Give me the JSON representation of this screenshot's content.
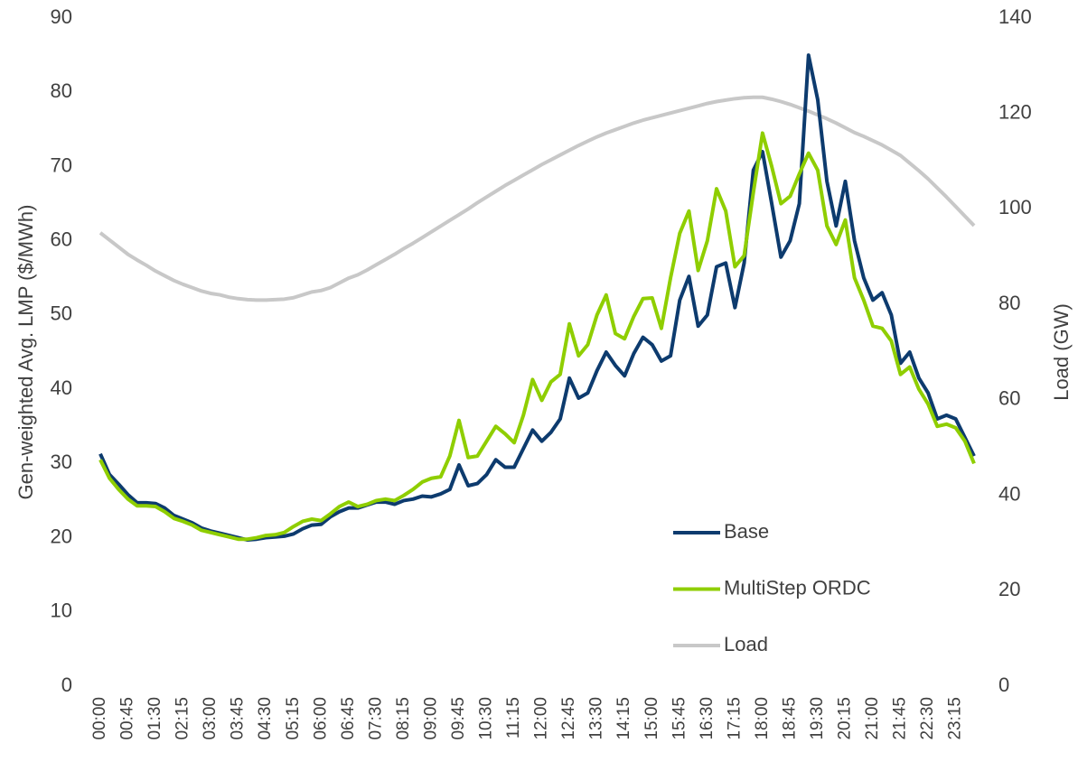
{
  "chart_data": {
    "type": "line",
    "categories": [
      "00:00",
      null,
      null,
      "00:45",
      null,
      null,
      "01:30",
      null,
      null,
      "02:15",
      null,
      null,
      "03:00",
      null,
      null,
      "03:45",
      null,
      null,
      "04:30",
      null,
      null,
      "05:15",
      null,
      null,
      "06:00",
      null,
      null,
      "06:45",
      null,
      null,
      "07:30",
      null,
      null,
      "08:15",
      null,
      null,
      "09:00",
      null,
      null,
      "09:45",
      null,
      null,
      "10:30",
      null,
      null,
      "11:15",
      null,
      null,
      "12:00",
      null,
      null,
      "12:45",
      null,
      null,
      "13:30",
      null,
      null,
      "14:15",
      null,
      null,
      "15:00",
      null,
      null,
      "15:45",
      null,
      null,
      "16:30",
      null,
      null,
      "17:15",
      null,
      null,
      "18:00",
      null,
      null,
      "18:45",
      null,
      null,
      "19:30",
      null,
      null,
      "20:15",
      null,
      null,
      "21:00",
      null,
      null,
      "21:45",
      null,
      null,
      "22:30",
      null,
      null,
      "23:15",
      null,
      null
    ],
    "ylabel": "Gen-weighted Avg. LMP ($/MWh)",
    "y2label": "Load (GW)",
    "ylim": [
      0,
      90
    ],
    "yticks": [
      0,
      10,
      20,
      30,
      40,
      50,
      60,
      70,
      80,
      90
    ],
    "y2lim": [
      0,
      140
    ],
    "y2ticks": [
      0,
      20,
      40,
      60,
      80,
      100,
      120,
      140
    ],
    "legend_loc": "lower right",
    "series": [
      {
        "name": "Base",
        "color": "#0d3b6e",
        "values": [
          31.3,
          28.5,
          27.2,
          25.8,
          24.7,
          24.7,
          24.6,
          24.0,
          23.0,
          22.5,
          22.0,
          21.3,
          20.9,
          20.6,
          20.3,
          20.0,
          19.7,
          19.8,
          20.0,
          20.1,
          20.2,
          20.5,
          21.2,
          21.7,
          21.8,
          22.8,
          23.5,
          24.0,
          24.0,
          24.4,
          24.8,
          24.8,
          24.5,
          25.0,
          25.2,
          25.6,
          25.5,
          25.9,
          26.5,
          29.8,
          27.0,
          27.3,
          28.5,
          30.5,
          29.5,
          29.5,
          32.0,
          34.5,
          33.0,
          34.2,
          36.0,
          41.5,
          38.8,
          39.5,
          42.5,
          45.0,
          43.2,
          41.8,
          44.8,
          47.0,
          46.0,
          43.8,
          44.5,
          52.0,
          55.2,
          48.5,
          50.0,
          56.5,
          57.0,
          51.0,
          57.0,
          69.5,
          72.0,
          65.0,
          57.8,
          60.0,
          65.0,
          85.0,
          79.0,
          68.0,
          62.0,
          68.0,
          60.0,
          55.0,
          52.0,
          53.0,
          50.0,
          43.5,
          45.0,
          41.5,
          39.5,
          36.0,
          36.5,
          36.0,
          33.5,
          31.0
        ]
      },
      {
        "name": "MultiStep ORDC",
        "color": "#8fce00",
        "values": [
          30.5,
          28.0,
          26.5,
          25.2,
          24.3,
          24.3,
          24.2,
          23.5,
          22.6,
          22.2,
          21.7,
          21.0,
          20.7,
          20.4,
          20.1,
          19.8,
          19.8,
          20.0,
          20.3,
          20.4,
          20.7,
          21.5,
          22.2,
          22.5,
          22.3,
          23.2,
          24.2,
          24.8,
          24.2,
          24.5,
          25.0,
          25.2,
          25.0,
          25.7,
          26.5,
          27.5,
          28.0,
          28.2,
          31.0,
          35.8,
          30.8,
          31.0,
          33.0,
          35.0,
          34.0,
          32.8,
          36.5,
          41.3,
          38.5,
          41.0,
          42.0,
          48.8,
          44.5,
          46.0,
          50.0,
          52.7,
          47.5,
          46.8,
          49.8,
          52.2,
          52.3,
          48.2,
          55.0,
          61.0,
          64.0,
          56.0,
          60.0,
          67.0,
          64.0,
          56.5,
          58.0,
          66.5,
          74.5,
          70.0,
          65.0,
          66.0,
          69.0,
          71.8,
          69.5,
          62.0,
          59.5,
          62.8,
          55.0,
          52.0,
          48.5,
          48.2,
          46.5,
          42.0,
          43.0,
          40.0,
          38.0,
          35.0,
          35.3,
          34.8,
          33.0,
          30.0
        ]
      },
      {
        "name": "Load",
        "color": "#c8c8c8",
        "axis": "y2",
        "values": [
          95,
          93.5,
          92,
          90.5,
          89.3,
          88.2,
          87,
          86,
          85,
          84.2,
          83.5,
          82.8,
          82.3,
          82,
          81.5,
          81.2,
          81,
          80.9,
          80.9,
          81,
          81.1,
          81.4,
          82,
          82.6,
          82.9,
          83.5,
          84.5,
          85.5,
          86.2,
          87.2,
          88.3,
          89.4,
          90.5,
          91.7,
          92.8,
          94,
          95.2,
          96.4,
          97.6,
          98.8,
          100,
          101.3,
          102.5,
          103.7,
          104.9,
          106,
          107.1,
          108.2,
          109.3,
          110.3,
          111.3,
          112.3,
          113.3,
          114.2,
          115.1,
          115.9,
          116.6,
          117.3,
          118,
          118.6,
          119.1,
          119.6,
          120.1,
          120.6,
          121.1,
          121.6,
          122.1,
          122.5,
          122.8,
          123.1,
          123.3,
          123.4,
          123.4,
          123,
          122.5,
          121.9,
          121.2,
          120.5,
          119.7,
          118.9,
          118,
          117,
          116,
          115.2,
          114.3,
          113.4,
          112.3,
          111.2,
          109.6,
          108,
          106.3,
          104.4,
          102.5,
          100.5,
          98.5,
          96.5
        ]
      }
    ]
  }
}
